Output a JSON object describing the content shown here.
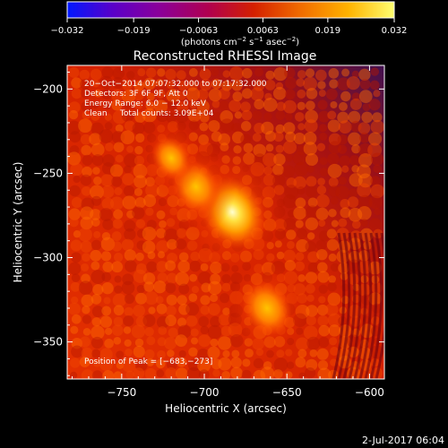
{
  "colorbar": {
    "tick_labels": [
      "−0.032",
      "−0.019",
      "−0.0063",
      "0.0063",
      "0.019",
      "0.032"
    ],
    "tick_values": [
      -0.032,
      -0.019,
      -0.0063,
      0.0063,
      0.019,
      0.032
    ],
    "range": [
      -0.032,
      0.032
    ],
    "units_main": "(photons cm",
    "units_exp1": "−2",
    "units_mid": " s",
    "units_exp2": "−1",
    "units_mid2": " asec",
    "units_exp3": "−2",
    "units_end": ")",
    "colormap": [
      "#0018ff",
      "#5a00c8",
      "#8a009a",
      "#b00050",
      "#d42000",
      "#f06a00",
      "#ffb300",
      "#ffff70"
    ]
  },
  "chart_data": {
    "type": "heatmap",
    "title": "Reconstructed RHESSI Image",
    "xlabel": "Heliocentric X (arcsec)",
    "ylabel": "Heliocentric Y (arcsec)",
    "xlim": [
      -783,
      -591
    ],
    "ylim": [
      -372,
      -186
    ],
    "x_ticks": [
      -750,
      -700,
      -650,
      -600
    ],
    "x_tick_labels": [
      "−750",
      "−700",
      "−650",
      "−600"
    ],
    "y_ticks": [
      -350,
      -300,
      -250,
      -200
    ],
    "y_tick_labels": [
      "−350",
      "−300",
      "−250",
      "−200"
    ],
    "annotations": [
      "20−Oct−2014 07:07:32.000 to 07:17:32.000",
      "Detectors: 3F 6F 9F, Att 0",
      "Energy Range: 6.0 − 12.0 keV",
      "Clean     Total counts: 3.09E+04"
    ],
    "peak_label": "Position of Peak = [−683,−273]",
    "peak_position": [
      -683,
      -273
    ],
    "sources": [
      {
        "x": -683,
        "y": -273,
        "flux": 0.032
      },
      {
        "x": -705,
        "y": -258,
        "flux": 0.022
      },
      {
        "x": -662,
        "y": -330,
        "flux": 0.022
      },
      {
        "x": -720,
        "y": -241,
        "flux": 0.016
      }
    ]
  },
  "footer": {
    "timestamp": "2-Jul-2017 06:04"
  }
}
